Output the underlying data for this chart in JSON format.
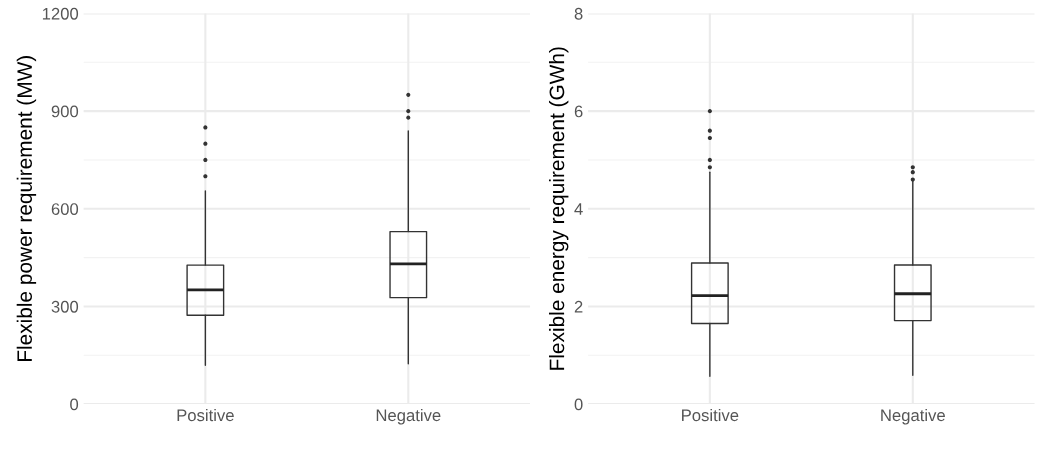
{
  "chart_data": [
    {
      "type": "box",
      "ylabel": "Flexible power requirement (MW)",
      "categories": [
        "Positive",
        "Negative"
      ],
      "ylim": [
        0,
        1200
      ],
      "yticks": [
        0,
        300,
        600,
        900,
        1200
      ],
      "grid": true,
      "boxes": [
        {
          "low": 119,
          "q1": 273,
          "median": 351,
          "q3": 427,
          "high": 655,
          "outliers": [
            700,
            750,
            800,
            850
          ]
        },
        {
          "low": 124,
          "q1": 327,
          "median": 431,
          "q3": 530,
          "high": 839,
          "outliers": [
            880,
            900,
            950
          ]
        }
      ]
    },
    {
      "type": "box",
      "ylabel": "Flexible energy requirement (GWh)",
      "categories": [
        "Positive",
        "Negative"
      ],
      "ylim": [
        0,
        8
      ],
      "yticks": [
        0,
        2,
        4,
        6,
        8
      ],
      "grid": true,
      "boxes": [
        {
          "low": 0.57,
          "q1": 1.65,
          "median": 2.22,
          "q3": 2.89,
          "high": 4.75,
          "outliers": [
            4.85,
            5.0,
            5.45,
            5.6,
            6.0
          ]
        },
        {
          "low": 0.59,
          "q1": 1.71,
          "median": 2.26,
          "q3": 2.85,
          "high": 4.56,
          "outliers": [
            4.6,
            4.75,
            4.85
          ]
        }
      ]
    }
  ]
}
